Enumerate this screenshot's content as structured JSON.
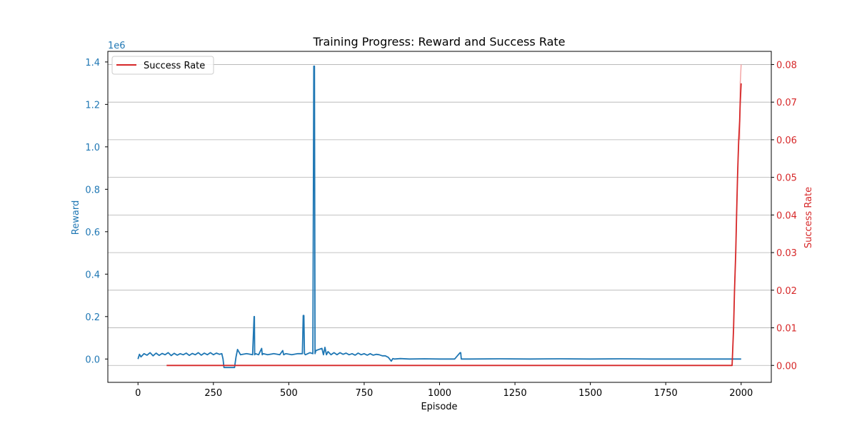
{
  "chart_data": {
    "type": "line",
    "title": "Training Progress: Reward and Success Rate",
    "xlabel": "Episode",
    "ylabel_left": "Reward",
    "ylabel_right": "Success Rate",
    "left_scale_label": "1e6",
    "xlim": [
      -100,
      2100
    ],
    "ylim_left": [
      -0.11,
      1.45
    ],
    "ylim_right": [
      -0.0045,
      0.0835
    ],
    "x_ticks": [
      0,
      250,
      500,
      750,
      1000,
      1250,
      1500,
      1750,
      2000
    ],
    "x_tick_labels": [
      "0",
      "250",
      "500",
      "750",
      "1000",
      "1250",
      "1500",
      "1750",
      "2000"
    ],
    "y_left_ticks": [
      0.0,
      0.2,
      0.4,
      0.6,
      0.8,
      1.0,
      1.2,
      1.4
    ],
    "y_left_tick_labels": [
      "0.0",
      "0.2",
      "0.4",
      "0.6",
      "0.8",
      "1.0",
      "1.2",
      "1.4"
    ],
    "y_right_ticks": [
      0.0,
      0.01,
      0.02,
      0.03,
      0.04,
      0.05,
      0.06,
      0.07,
      0.08
    ],
    "y_right_tick_labels": [
      "0.00",
      "0.01",
      "0.02",
      "0.03",
      "0.04",
      "0.05",
      "0.06",
      "0.07",
      "0.08"
    ],
    "grid": "horizontal (right axis)",
    "legend": {
      "position": "top-left",
      "entries": [
        {
          "label": "Success Rate",
          "color": "#d62728"
        }
      ]
    },
    "colors": {
      "reward": "#1f77b4",
      "success": "#d62728",
      "success_faint": "#f4a6a6"
    },
    "series": [
      {
        "name": "Reward",
        "axis": "left",
        "x": [
          0,
          5,
          10,
          20,
          30,
          40,
          50,
          60,
          70,
          80,
          90,
          100,
          110,
          120,
          130,
          140,
          150,
          160,
          170,
          180,
          190,
          200,
          210,
          220,
          230,
          240,
          250,
          260,
          270,
          278,
          282,
          285,
          300,
          320,
          325,
          330,
          340,
          360,
          380,
          385,
          386,
          387,
          390,
          400,
          410,
          412,
          415,
          430,
          450,
          470,
          480,
          483,
          490,
          510,
          530,
          545,
          548,
          550,
          552,
          555,
          570,
          580,
          583,
          585,
          587,
          590,
          600,
          610,
          615,
          620,
          625,
          630,
          640,
          650,
          660,
          670,
          680,
          690,
          700,
          710,
          720,
          730,
          740,
          750,
          760,
          770,
          780,
          790,
          800,
          810,
          820,
          830,
          840,
          845,
          850,
          870,
          900,
          950,
          1000,
          1050,
          1068,
          1070,
          1072,
          1100,
          1200,
          1300,
          1400,
          1500,
          1600,
          1700,
          1750,
          1800,
          1900,
          2000
        ],
        "values": [
          0.0,
          0.022,
          0.01,
          0.025,
          0.018,
          0.03,
          0.015,
          0.028,
          0.017,
          0.026,
          0.02,
          0.03,
          0.016,
          0.027,
          0.018,
          0.025,
          0.02,
          0.028,
          0.017,
          0.026,
          0.02,
          0.03,
          0.018,
          0.028,
          0.02,
          0.03,
          0.02,
          0.028,
          0.022,
          0.025,
          0.0,
          -0.04,
          -0.04,
          -0.04,
          0.01,
          0.045,
          0.02,
          0.025,
          0.02,
          0.2,
          0.2,
          0.02,
          0.025,
          0.02,
          0.05,
          0.02,
          0.025,
          0.02,
          0.025,
          0.02,
          0.04,
          0.02,
          0.025,
          0.02,
          0.025,
          0.025,
          0.205,
          0.205,
          0.025,
          0.02,
          0.03,
          0.025,
          1.38,
          1.38,
          0.025,
          0.04,
          0.045,
          0.05,
          0.02,
          0.055,
          0.02,
          0.035,
          0.02,
          0.03,
          0.02,
          0.03,
          0.022,
          0.028,
          0.02,
          0.025,
          0.018,
          0.028,
          0.02,
          0.025,
          0.018,
          0.025,
          0.018,
          0.022,
          0.02,
          0.015,
          0.015,
          0.008,
          -0.01,
          0.002,
          0.0,
          0.002,
          0.0,
          0.001,
          0.0,
          0.0,
          0.03,
          0.03,
          0.0,
          0.0,
          0.001,
          0.0,
          0.001,
          0.0,
          0.001,
          0.0,
          0.0,
          0.0,
          0.0,
          0.0
        ]
      },
      {
        "name": "Success Rate",
        "axis": "right",
        "x": [
          95,
          500,
          1000,
          1500,
          1970,
          1975,
          1978,
          1982,
          1985,
          1988,
          1990,
          1992,
          1995,
          1997,
          2000
        ],
        "values": [
          0.0,
          0.0,
          0.0,
          0.0,
          0.0,
          0.01,
          0.02,
          0.03,
          0.04,
          0.05,
          0.055,
          0.06,
          0.065,
          0.07,
          0.075
        ]
      }
    ],
    "success_band": {
      "x": [
        1995,
        1997,
        2000
      ],
      "values": [
        0.06,
        0.075,
        0.08
      ]
    }
  }
}
